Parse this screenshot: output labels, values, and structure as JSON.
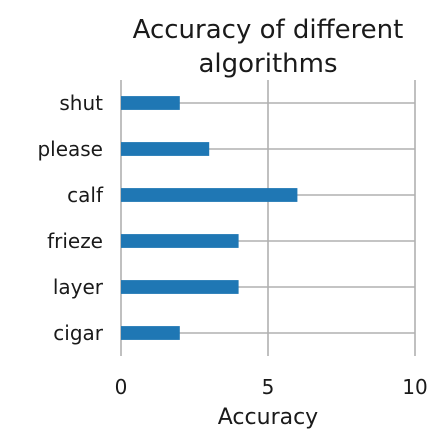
{
  "chart_data": {
    "type": "bar",
    "orientation": "horizontal",
    "title_lines": [
      "Accuracy of different",
      "algorithms"
    ],
    "xlabel": "Accuracy",
    "ylabel": "",
    "categories": [
      "shut",
      "please",
      "calf",
      "frieze",
      "layer",
      "cigar"
    ],
    "values": [
      2,
      3,
      6,
      4,
      4,
      2
    ],
    "xlim": [
      0,
      10
    ],
    "xticks": [
      0,
      5,
      10
    ],
    "grid": true,
    "bar_color": "#1f77b4",
    "grid_color": "#b0b0b0"
  }
}
